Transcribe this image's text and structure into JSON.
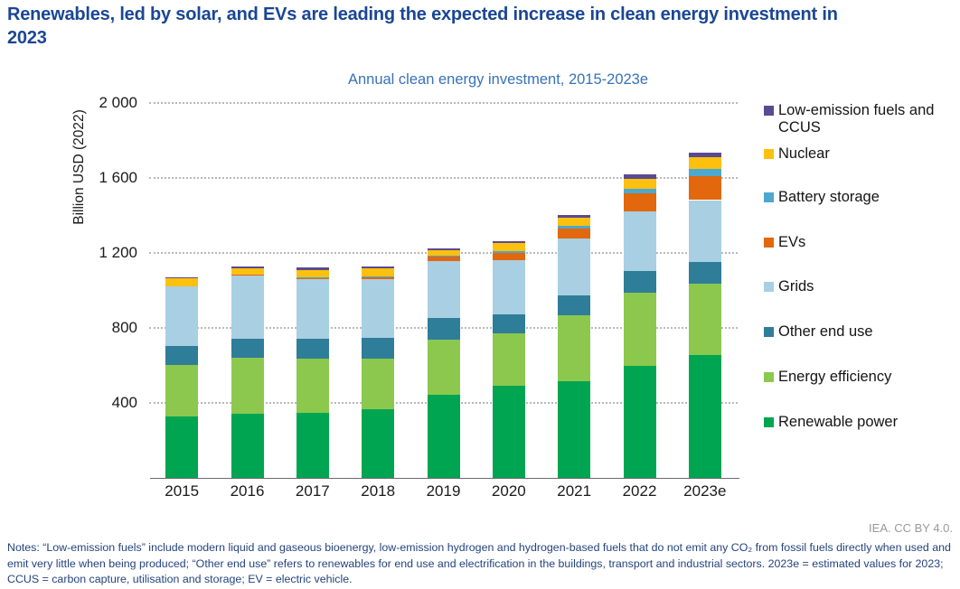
{
  "page": {
    "title": "Renewables, led by solar, and EVs are leading the expected increase in clean energy investment in 2023",
    "attribution": "IEA. CC BY 4.0.",
    "notes": "Notes: “Low-emission fuels” include modern liquid and gaseous bioenergy, low-emission hydrogen and hydrogen-based fuels that do not emit any CO₂ from fossil fuels directly when used and emit very little when being produced; “Other end use” refers to renewables for end use and electrification in the buildings, transport and industrial sectors. 2023e = estimated values for 2023; CCUS = carbon capture, utilisation and storage; EV = electric vehicle."
  },
  "chart_data": {
    "type": "bar",
    "stacked": true,
    "title": "Annual clean energy investment, 2015-2023e",
    "ylabel": "Billion USD (2022)",
    "xlabel": "",
    "ylim": [
      0,
      2000
    ],
    "grid": "horizontal-dotted",
    "legend_position": "right",
    "categories": [
      "2015",
      "2016",
      "2017",
      "2018",
      "2019",
      "2020",
      "2021",
      "2022",
      "2023e"
    ],
    "yticks": [
      {
        "value": 2000,
        "label": "2 000"
      },
      {
        "value": 1600,
        "label": "1 600"
      },
      {
        "value": 1200,
        "label": "1 200"
      },
      {
        "value": 800,
        "label": "800"
      },
      {
        "value": 400,
        "label": "400"
      }
    ],
    "series": [
      {
        "name": "Renewable power",
        "color": "#00a551",
        "values": [
          325,
          340,
          345,
          365,
          440,
          490,
          515,
          595,
          655
        ]
      },
      {
        "name": "Energy efficiency",
        "color": "#8cc84e",
        "values": [
          275,
          300,
          290,
          270,
          295,
          280,
          350,
          390,
          380
        ]
      },
      {
        "name": "Other end use",
        "color": "#2e7d99",
        "values": [
          100,
          100,
          105,
          110,
          115,
          100,
          105,
          115,
          115
        ]
      },
      {
        "name": "Grids",
        "color": "#a9cfe3",
        "values": [
          320,
          340,
          320,
          315,
          305,
          290,
          305,
          320,
          330
        ]
      },
      {
        "name": "EVs",
        "color": "#e2670d",
        "values": [
          0,
          2,
          8,
          12,
          25,
          38,
          55,
          95,
          130
        ]
      },
      {
        "name": "Battery storage",
        "color": "#4ca8cf",
        "values": [
          0,
          0,
          2,
          3,
          5,
          10,
          15,
          25,
          35
        ]
      },
      {
        "name": "Nuclear",
        "color": "#fdc00e",
        "values": [
          41,
          32,
          38,
          40,
          26,
          42,
          43,
          55,
          65
        ]
      },
      {
        "name": "Low-emission fuels and CCUS",
        "color": "#5a4a91",
        "values": [
          8,
          12,
          11,
          13,
          10,
          12,
          12,
          20,
          25
        ]
      }
    ],
    "totals": [
      1069,
      1126,
      1119,
      1128,
      1221,
      1262,
      1400,
      1615,
      1735
    ]
  }
}
